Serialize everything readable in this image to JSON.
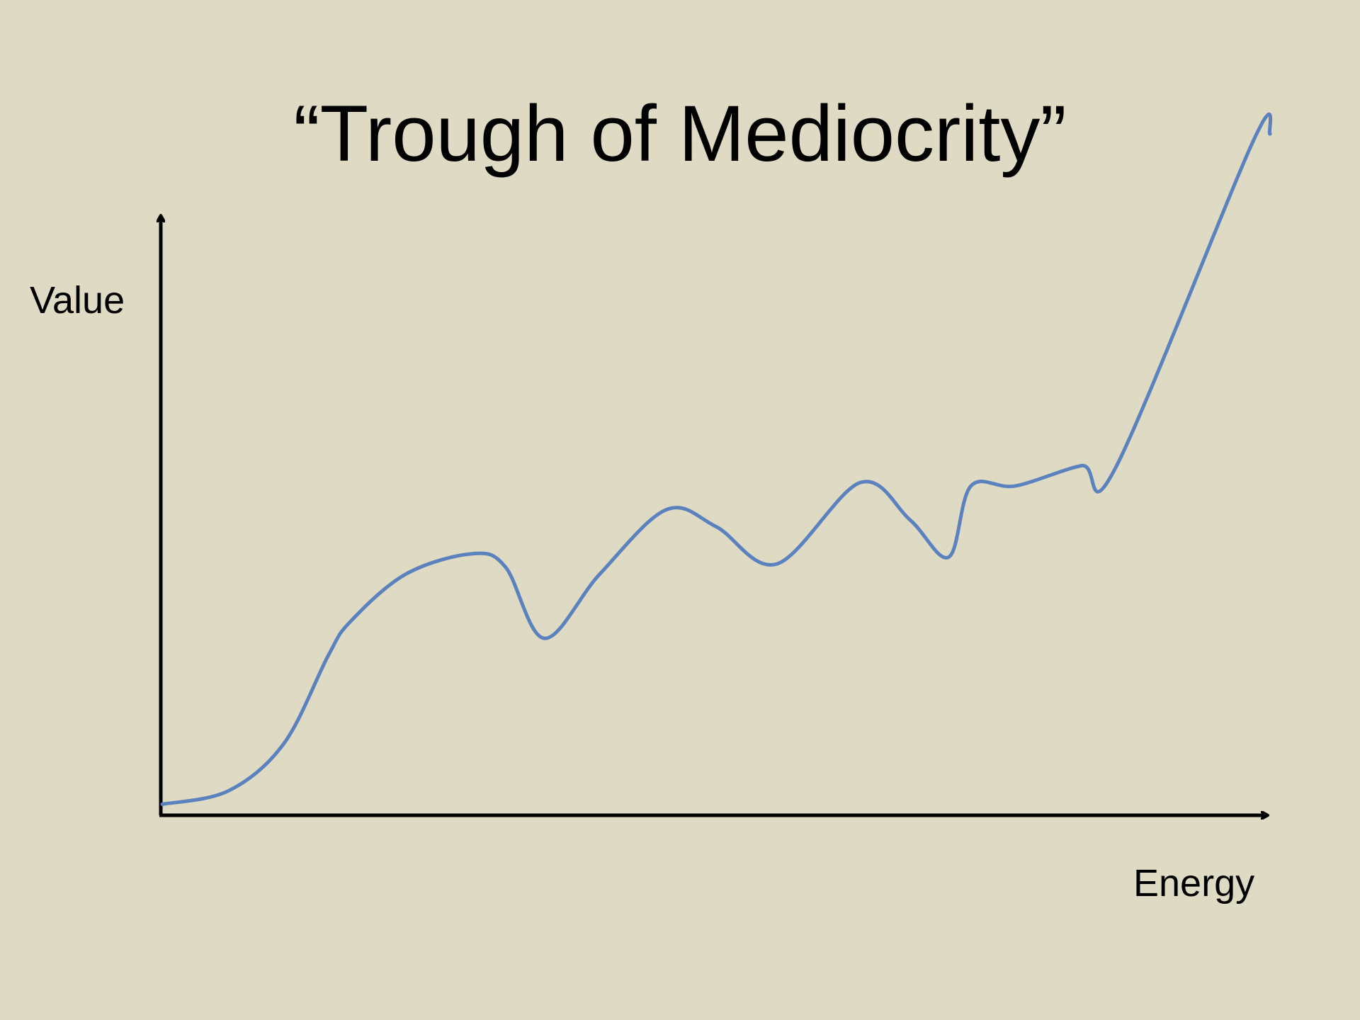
{
  "colors": {
    "background": "#dedac4",
    "axis": "#000000",
    "line": "#5b82be"
  },
  "chart_data": {
    "type": "line",
    "title": "“Trough of Mediocrity”",
    "xlabel": "Energy",
    "ylabel": "Value",
    "xlim": [
      0,
      100
    ],
    "ylim": [
      0,
      100
    ],
    "grid": false,
    "legend": "none",
    "series": [
      {
        "x": [
          0,
          6,
          11,
          15,
          17,
          22,
          28,
          31,
          34.5,
          39.5,
          45.5,
          50,
          55.5,
          63,
          67.5,
          71,
          73,
          77,
          83,
          86,
          98.5,
          100
        ],
        "y": [
          1,
          3,
          10,
          23,
          28,
          35,
          38,
          36,
          25.5,
          35,
          44.5,
          42,
          36.5,
          48.5,
          43,
          37.5,
          48,
          48,
          51,
          50.5,
          99,
          100
        ]
      }
    ]
  }
}
